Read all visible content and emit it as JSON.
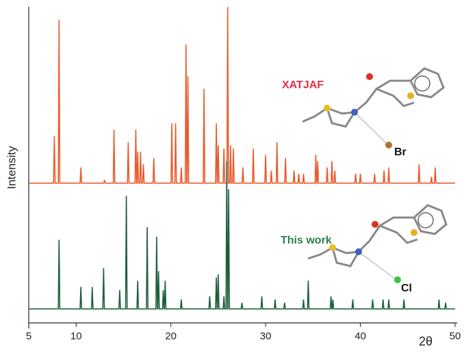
{
  "chart_data": {
    "type": "line",
    "x_label": "2θ",
    "y_label": "Intensity",
    "xlim": [
      5,
      50
    ],
    "xticks": [
      5,
      10,
      20,
      30,
      40,
      50
    ],
    "ylim": [
      0,
      102
    ],
    "annotations": [
      "XATJAF",
      "This work",
      "Br",
      "Cl"
    ],
    "series": [
      {
        "name": "XATJAF",
        "color": "#ea5a2c",
        "x": [
          5,
          7.62,
          7.7,
          7.78,
          8.12,
          8.2,
          8.28,
          10.42,
          10.5,
          10.58,
          12.92,
          13,
          13.08,
          13.92,
          14,
          14.08,
          15.42,
          15.5,
          15.58,
          16.22,
          16.3,
          16.38,
          16.42,
          16.5,
          16.58,
          16.72,
          16.8,
          16.88,
          17.02,
          17.1,
          17.18,
          18.12,
          18.2,
          18.28,
          20.02,
          20.1,
          20.18,
          20.42,
          20.5,
          20.58,
          21.02,
          21.1,
          21.18,
          21.52,
          21.6,
          21.68,
          21.72,
          21.8,
          21.88,
          23.42,
          23.5,
          23.58,
          24.72,
          24.8,
          24.88,
          24.92,
          25,
          25.08,
          25.52,
          25.6,
          25.68,
          25.92,
          26,
          26.08,
          26.22,
          26.3,
          26.38,
          26.52,
          26.6,
          26.68,
          27.52,
          27.6,
          27.68,
          28.62,
          28.7,
          28.78,
          29.92,
          30,
          30.08,
          30.52,
          30.6,
          30.68,
          31.12,
          31.2,
          31.28,
          32.02,
          32.1,
          32.18,
          32.92,
          33,
          33.08,
          33.42,
          33.5,
          33.58,
          33.92,
          34,
          34.08,
          35.22,
          35.3,
          35.38,
          35.42,
          35.5,
          35.58,
          36.42,
          36.5,
          36.58,
          36.92,
          37,
          37.08,
          37.22,
          37.3,
          37.38,
          39.42,
          39.5,
          39.58,
          39.92,
          40,
          40.08,
          41.42,
          41.5,
          41.58,
          42.42,
          42.5,
          42.58,
          42.92,
          43,
          43.08,
          46.12,
          46.2,
          46.28,
          47.42,
          47.5,
          47.58,
          47.82,
          47.9,
          47.98,
          50
        ],
        "values": [
          44,
          44,
          59,
          44,
          44,
          96,
          44,
          44,
          49,
          44,
          44,
          45,
          44,
          44,
          61,
          44,
          44,
          57,
          44,
          44,
          61,
          44,
          44,
          54,
          44,
          44,
          54,
          44,
          44,
          50,
          44,
          44,
          52,
          44,
          44,
          63,
          44,
          44,
          63,
          44,
          44,
          49,
          44,
          44,
          88,
          44,
          44,
          78,
          44,
          44,
          74,
          44,
          44,
          63,
          44,
          44,
          56,
          44,
          44,
          55,
          44,
          44,
          100,
          44,
          44,
          56,
          44,
          44,
          55,
          44,
          44,
          49,
          44,
          44,
          55,
          44,
          44,
          53,
          44,
          44,
          48,
          44,
          44,
          57,
          44,
          44,
          52,
          44,
          44,
          48,
          44,
          44,
          47,
          44,
          44,
          47,
          44,
          44,
          53,
          44,
          44,
          51,
          44,
          44,
          49,
          44,
          44,
          51,
          44,
          44,
          48,
          44,
          44,
          47,
          44,
          44,
          47,
          44,
          44,
          47,
          44,
          44,
          48,
          44,
          44,
          49,
          44,
          44,
          50,
          44,
          44,
          46,
          44,
          44,
          49,
          44,
          44
        ]
      },
      {
        "name": "This work",
        "color": "#1d5e3c",
        "x": [
          5,
          8.12,
          8.2,
          8.28,
          10.42,
          10.5,
          10.58,
          11.62,
          11.7,
          11.78,
          12.82,
          12.9,
          12.98,
          14.52,
          14.6,
          14.68,
          15.22,
          15.3,
          15.38,
          16.42,
          16.5,
          16.58,
          17.42,
          17.5,
          17.58,
          18.42,
          18.5,
          18.58,
          18.62,
          18.7,
          18.78,
          19.12,
          19.2,
          19.28,
          19.32,
          19.4,
          19.48,
          21.02,
          21.1,
          21.18,
          24.02,
          24.1,
          24.18,
          24.72,
          24.8,
          24.88,
          24.92,
          25,
          25.08,
          25.52,
          25.6,
          25.68,
          25.82,
          25.9,
          25.98,
          26.02,
          26.1,
          26.18,
          27.42,
          27.5,
          27.58,
          29.52,
          29.6,
          29.68,
          30.92,
          31,
          31.08,
          31.92,
          32,
          32.08,
          33.92,
          34,
          34.08,
          34.42,
          34.5,
          34.58,
          36.82,
          36.9,
          36.98,
          37.02,
          37.1,
          37.18,
          39.12,
          39.2,
          39.28,
          41.22,
          41.3,
          41.38,
          42.32,
          42.4,
          42.48,
          42.92,
          43,
          43.08,
          44.52,
          44.6,
          44.68,
          48.22,
          48.3,
          48.38,
          48.92,
          49,
          49.08,
          50
        ],
        "values": [
          4,
          4,
          26,
          4,
          4,
          11,
          4,
          4,
          11,
          4,
          4,
          17,
          4,
          4,
          10,
          4,
          4,
          40,
          4,
          4,
          13,
          4,
          4,
          30,
          4,
          4,
          27,
          4,
          4,
          16,
          4,
          4,
          10,
          4,
          4,
          13,
          4,
          4,
          7,
          4,
          4,
          8,
          4,
          4,
          14,
          4,
          4,
          15,
          4,
          4,
          8,
          4,
          4,
          51,
          4,
          4,
          42,
          4,
          4,
          6,
          4,
          4,
          8,
          4,
          4,
          7,
          4,
          4,
          6,
          4,
          4,
          7,
          4,
          4,
          13,
          4,
          4,
          8,
          4,
          4,
          7,
          4,
          4,
          7,
          4,
          4,
          7,
          4,
          4,
          7,
          4,
          4,
          7,
          4,
          4,
          7,
          4,
          4,
          7,
          4,
          4,
          6,
          4,
          4
        ]
      }
    ]
  }
}
